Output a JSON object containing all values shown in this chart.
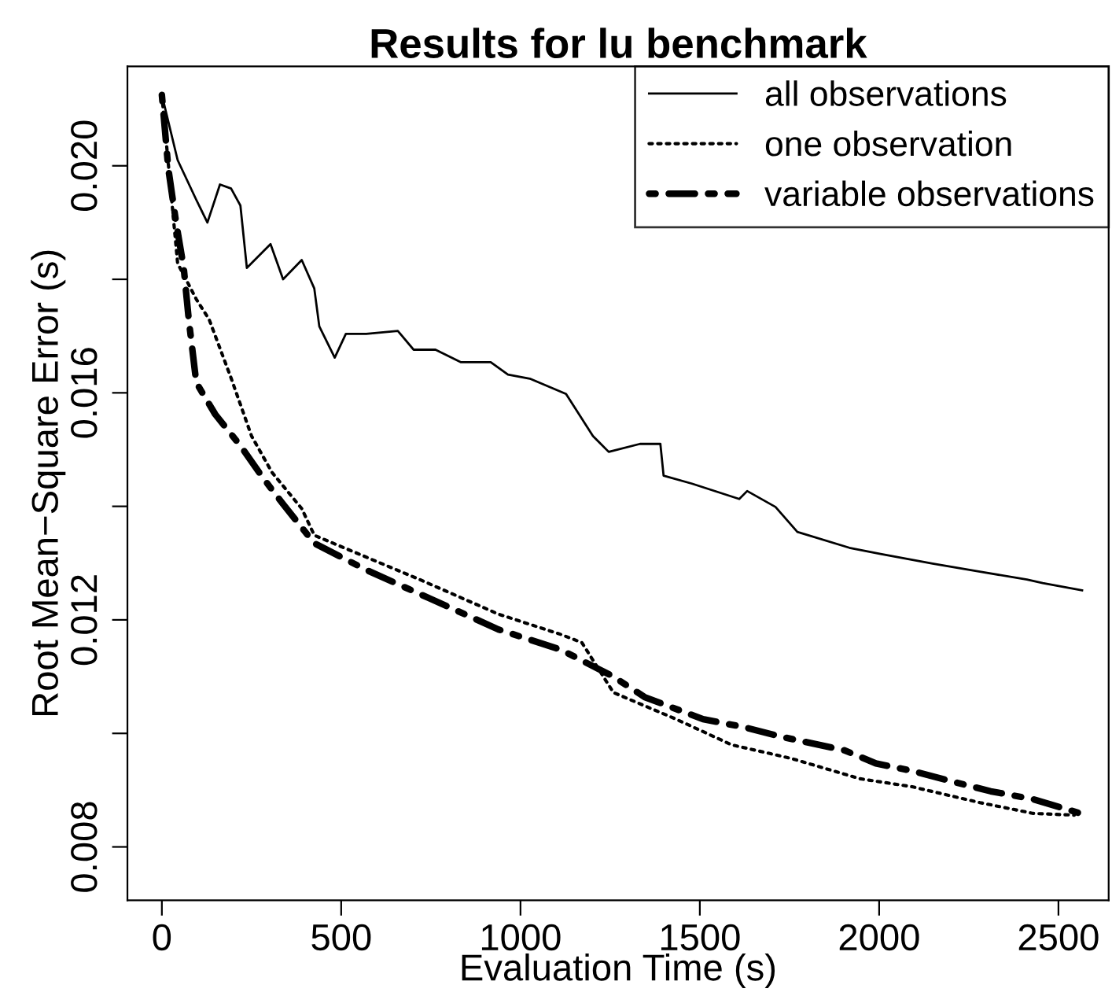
{
  "chart_data": {
    "type": "line",
    "title": "Results for lu benchmark",
    "xlabel": "Evaluation Time (s)",
    "ylabel": "Root Mean−Square Error (s)",
    "xlim": [
      -96,
      2640
    ],
    "xticks": [
      0,
      500,
      1000,
      1500,
      2000,
      2500
    ],
    "ylim": [
      0.00706,
      0.02175
    ],
    "yticks": [
      {
        "value": 0.008,
        "label": "0.008"
      },
      {
        "value": 0.01,
        "label": null
      },
      {
        "value": 0.012,
        "label": "0.012"
      },
      {
        "value": 0.014,
        "label": null
      },
      {
        "value": 0.016,
        "label": "0.016"
      },
      {
        "value": 0.018,
        "label": null
      },
      {
        "value": 0.02,
        "label": "0.020"
      }
    ],
    "grid": false,
    "legend": "top right",
    "series": [
      {
        "name": "all observations",
        "color": "#000000",
        "line_style": "solid",
        "x": [
          0,
          44,
          96,
          127,
          162,
          193,
          219,
          237,
          303,
          338,
          390,
          425,
          439,
          482,
          513,
          570,
          658,
          702,
          763,
          833,
          917,
          965,
          1026,
          1127,
          1202,
          1246,
          1333,
          1390,
          1399,
          1478,
          1610,
          1632,
          1711,
          1772,
          1917,
          2004,
          2149,
          2281,
          2412,
          2456,
          2566
        ],
        "values": [
          0.02125,
          0.0201,
          0.0194,
          0.019,
          0.01967,
          0.0196,
          0.0193,
          0.0182,
          0.01862,
          0.018,
          0.01834,
          0.01784,
          0.01717,
          0.01662,
          0.01704,
          0.01704,
          0.01709,
          0.01676,
          0.01676,
          0.01654,
          0.01654,
          0.01632,
          0.01625,
          0.01598,
          0.01524,
          0.01496,
          0.0151,
          0.0151,
          0.01454,
          0.0144,
          0.01413,
          0.01427,
          0.01399,
          0.01355,
          0.01327,
          0.01316,
          0.01299,
          0.01285,
          0.01271,
          0.01265,
          0.01252
        ]
      },
      {
        "name": "one observation",
        "color": "#000000",
        "line_style": "dotted",
        "x": [
          0,
          44,
          96,
          132,
          193,
          250,
          307,
          390,
          425,
          719,
          939,
          1114,
          1171,
          1259,
          1434,
          1588,
          1754,
          1947,
          2092,
          2281,
          2430,
          2544
        ],
        "values": [
          0.02125,
          0.01828,
          0.01765,
          0.01729,
          0.01626,
          0.01524,
          0.0146,
          0.01396,
          0.01349,
          0.01271,
          0.0121,
          0.01174,
          0.0116,
          0.01072,
          0.01025,
          0.0098,
          0.00956,
          0.0092,
          0.00906,
          0.00878,
          0.00859,
          0.00856
        ]
      },
      {
        "name": "variable observations",
        "color": "#000000",
        "line_style": "dashdot",
        "x": [
          0,
          18,
          39,
          61,
          75,
          96,
          149,
          219,
          281,
          338,
          425,
          570,
          746,
          939,
          1114,
          1259,
          1346,
          1509,
          1623,
          1728,
          1904,
          1991,
          2092,
          2211,
          2311,
          2430,
          2561
        ],
        "values": [
          0.02125,
          0.01995,
          0.01903,
          0.0182,
          0.01729,
          0.01618,
          0.01562,
          0.01507,
          0.01451,
          0.01404,
          0.01335,
          0.01288,
          0.01238,
          0.01183,
          0.01147,
          0.011,
          0.01064,
          0.01025,
          0.01011,
          0.00994,
          0.0097,
          0.00947,
          0.00934,
          0.00914,
          0.00898,
          0.00884,
          0.00859
        ]
      }
    ]
  }
}
